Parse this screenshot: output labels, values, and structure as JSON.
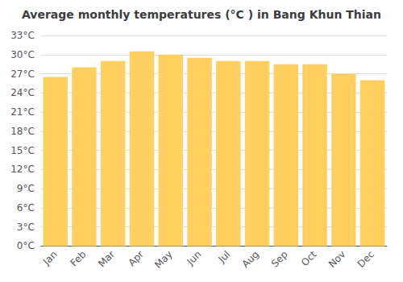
{
  "chart_data": {
    "type": "bar",
    "title": "Average monthly temperatures (°C ) in Bang Khun Thian",
    "categories": [
      "Jan",
      "Feb",
      "Mar",
      "Apr",
      "May",
      "Jun",
      "Jul",
      "Aug",
      "Sep",
      "Oct",
      "Nov",
      "Dec"
    ],
    "values": [
      26.5,
      28.0,
      29.0,
      30.5,
      30.0,
      29.5,
      29.0,
      29.0,
      28.5,
      28.5,
      27.0,
      26.0
    ],
    "color": "#FFD060",
    "ylim": [
      0,
      33
    ],
    "yticks": [
      {
        "value": 0,
        "label": "0°C"
      },
      {
        "value": 3,
        "label": "3°C"
      },
      {
        "value": 6,
        "label": "6°C"
      },
      {
        "value": 9,
        "label": "9°C"
      },
      {
        "value": 12,
        "label": "12°C"
      },
      {
        "value": 15,
        "label": "15°C"
      },
      {
        "value": 18,
        "label": "18°C"
      },
      {
        "value": 21,
        "label": "21°C"
      },
      {
        "value": 24,
        "label": "24°C"
      },
      {
        "value": 27,
        "label": "27°C"
      },
      {
        "value": 30,
        "label": "30°C"
      },
      {
        "value": 33,
        "label": "33°C"
      }
    ],
    "grid": true
  }
}
